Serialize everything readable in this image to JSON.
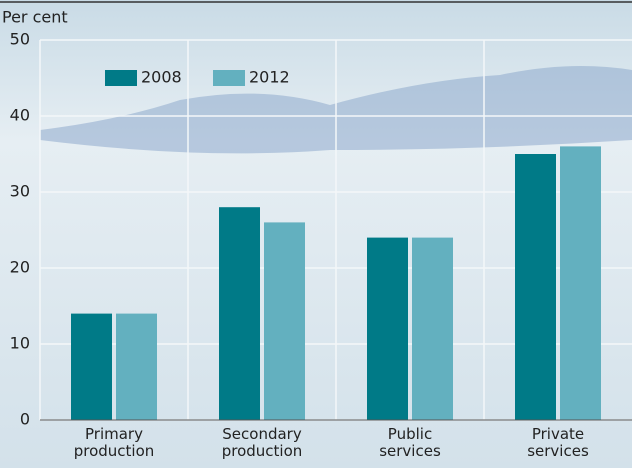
{
  "chart_data": {
    "type": "bar",
    "y_label": "Per cent",
    "categories": [
      "Primary production",
      "Secondary production",
      "Public services",
      "Private services"
    ],
    "series": [
      {
        "name": "2008",
        "color": "#007a87",
        "values": [
          14,
          28,
          24,
          35
        ]
      },
      {
        "name": "2012",
        "color": "#63b0bf",
        "values": [
          14,
          26,
          24,
          36
        ]
      }
    ],
    "ylim": [
      0,
      50
    ],
    "yticks": [
      0,
      10,
      20,
      30,
      40,
      50
    ],
    "grid": true
  }
}
